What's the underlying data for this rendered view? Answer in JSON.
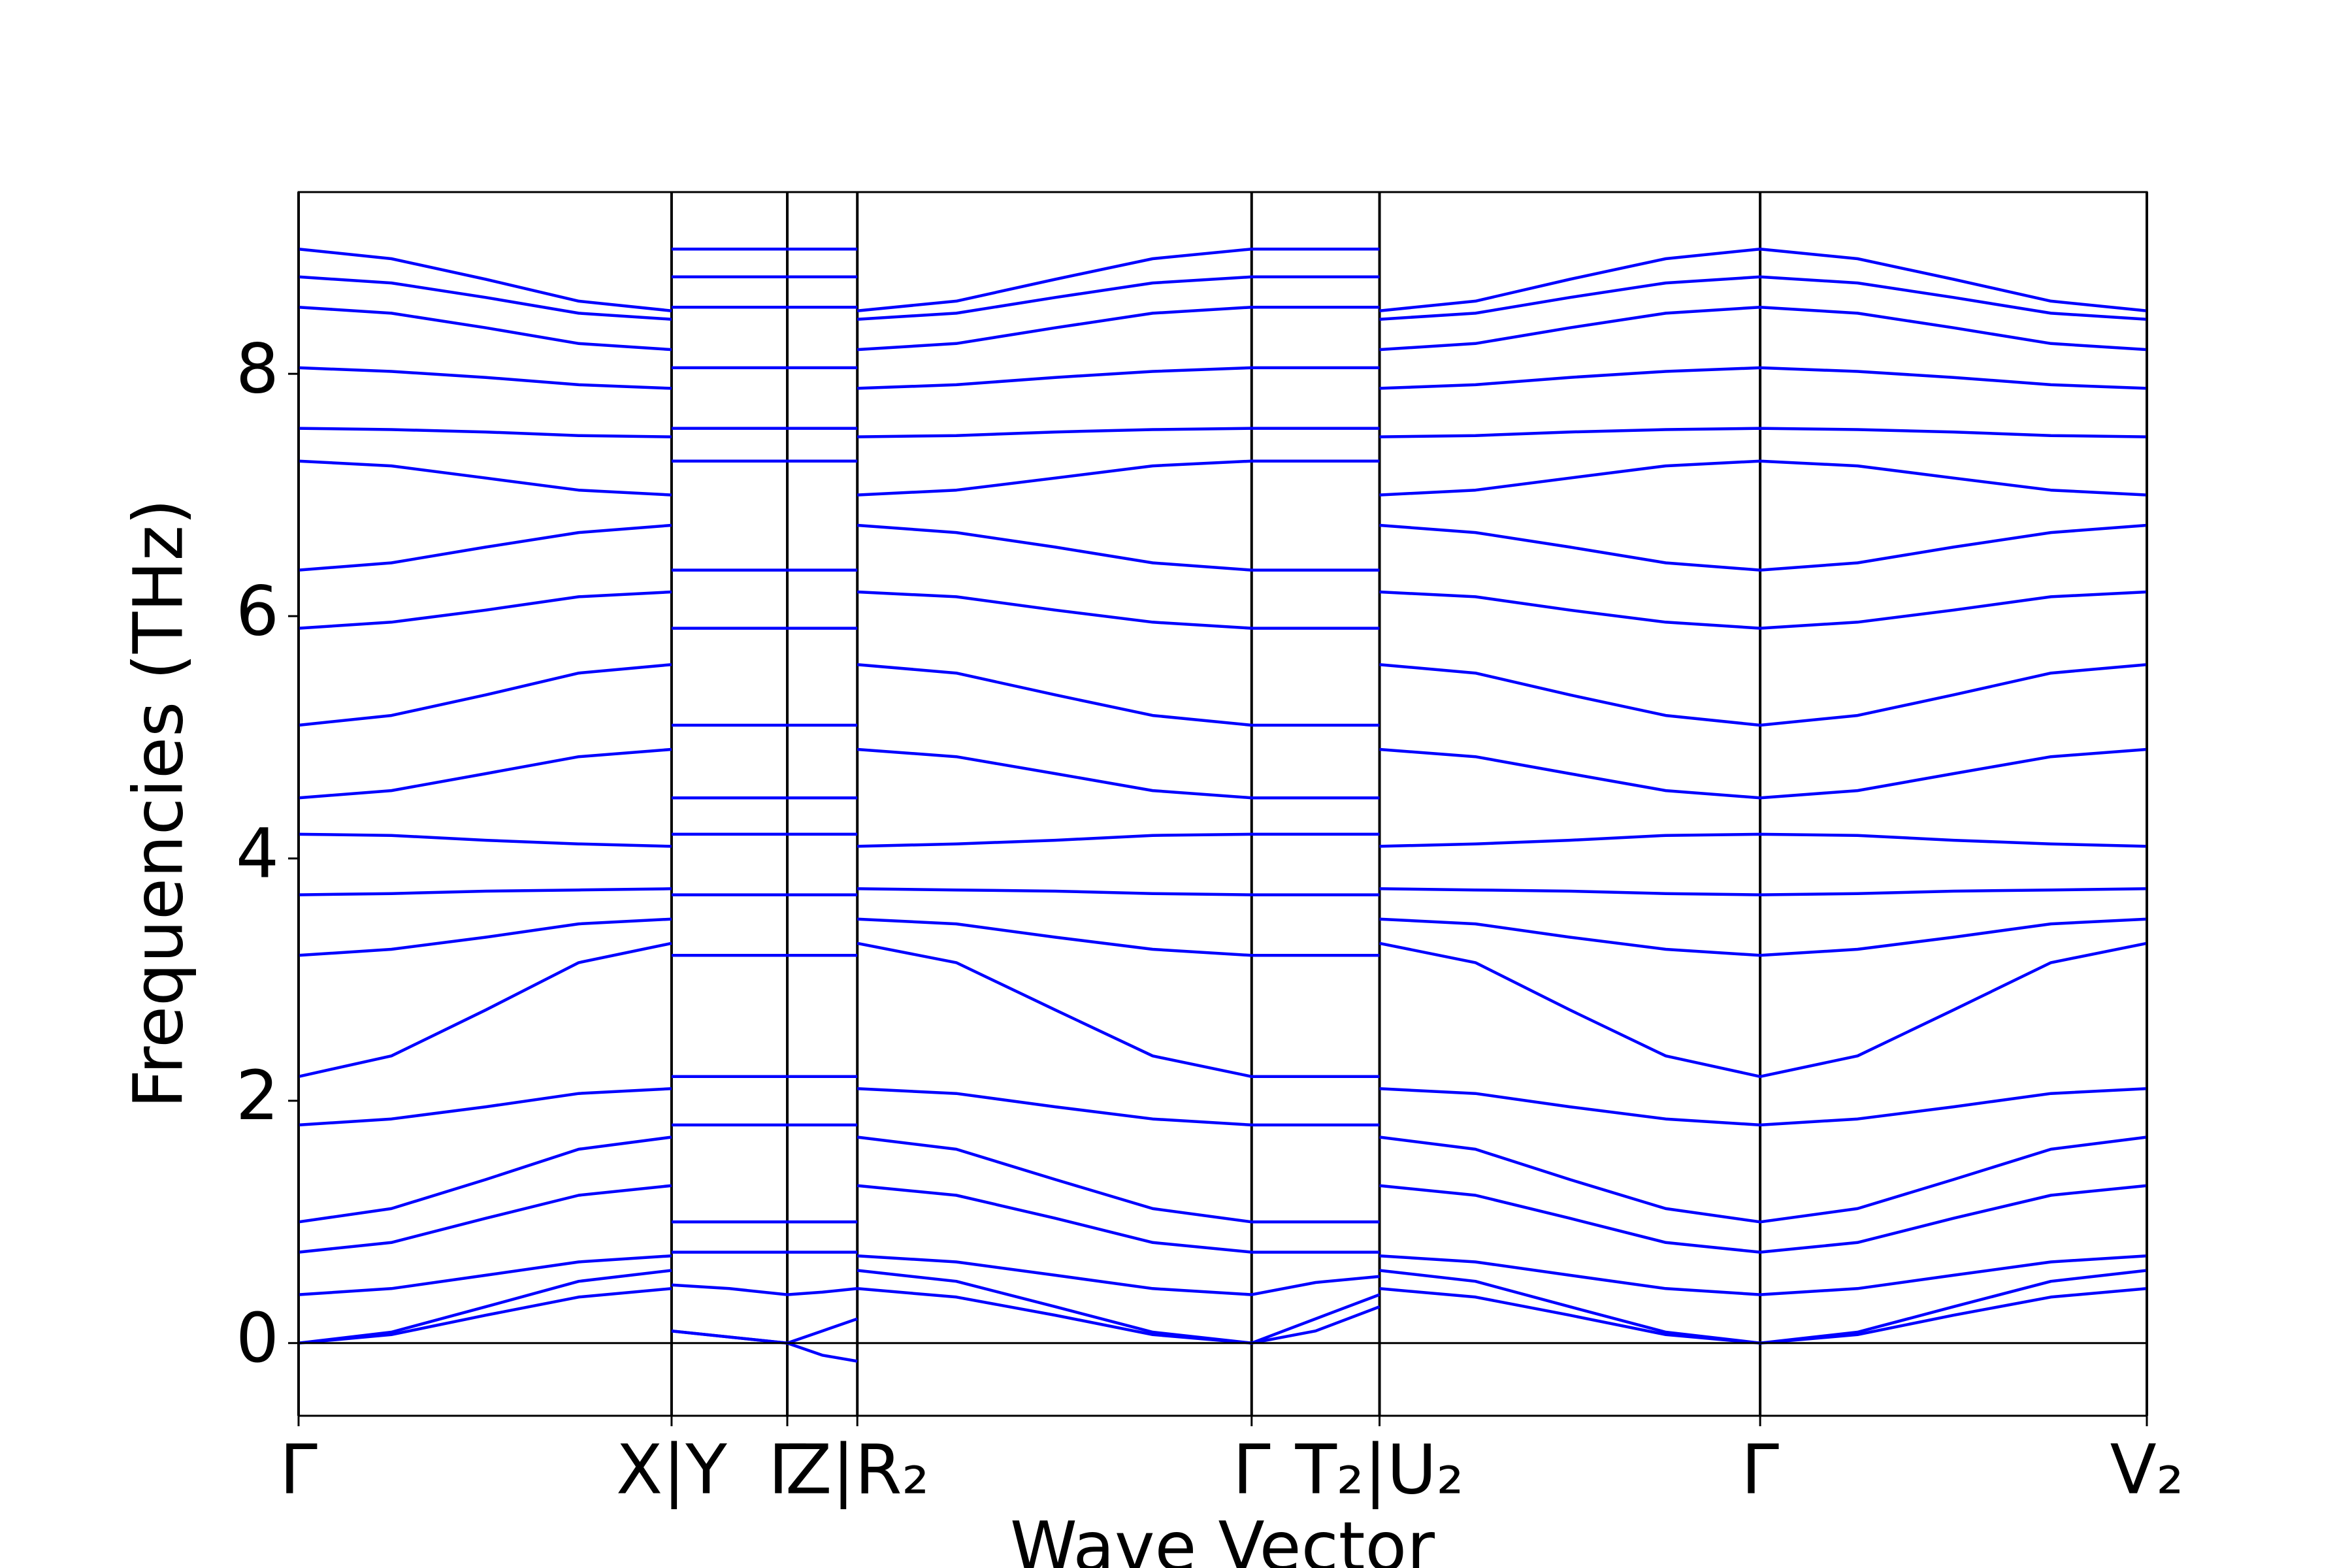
{
  "chart_data": {
    "type": "line",
    "xlabel": "Wave Vector",
    "ylabel": "Frequencies (THz)",
    "color": "#0000ff",
    "zero_line": true,
    "vlines": true,
    "xlim": [
      0,
      1214
    ],
    "ylim": [
      -0.6,
      9.5
    ],
    "yticks": [
      0,
      2,
      4,
      6,
      8
    ],
    "xticks": [
      {
        "value": 0,
        "label": "Γ"
      },
      {
        "value": 245,
        "label": "X|Y"
      },
      {
        "value": 321,
        "label": "Γ"
      },
      {
        "value": 367,
        "label": "Z|R₂"
      },
      {
        "value": 626,
        "label": "Γ"
      },
      {
        "value": 710,
        "label": "T₂|U₂"
      },
      {
        "value": 960,
        "label": "Γ"
      },
      {
        "value": 1214,
        "label": "V₂"
      }
    ],
    "x": [
      0,
      61,
      123,
      184,
      245,
      245,
      245,
      283,
      321,
      344,
      367,
      367,
      367,
      432,
      497,
      561,
      626,
      668,
      710,
      710,
      710,
      773,
      835,
      898,
      960,
      1024,
      1087,
      1151,
      1214
    ],
    "series": [
      {
        "values": [
          9.03,
          8.95,
          8.78,
          8.6,
          8.52,
          null,
          9.03,
          9.03,
          9.03,
          9.03,
          9.03,
          null,
          8.52,
          8.6,
          8.78,
          8.95,
          9.03,
          9.03,
          9.03,
          null,
          8.52,
          8.6,
          8.78,
          8.95,
          9.03,
          8.95,
          8.78,
          8.6,
          8.52
        ]
      },
      {
        "values": [
          8.8,
          8.75,
          8.63,
          8.5,
          8.45,
          null,
          8.8,
          8.8,
          8.8,
          8.8,
          8.8,
          null,
          8.45,
          8.5,
          8.63,
          8.75,
          8.8,
          8.8,
          8.8,
          null,
          8.45,
          8.5,
          8.63,
          8.75,
          8.8,
          8.75,
          8.63,
          8.5,
          8.45
        ]
      },
      {
        "values": [
          8.55,
          8.5,
          8.38,
          8.25,
          8.2,
          null,
          8.55,
          8.55,
          8.55,
          8.55,
          8.55,
          null,
          8.2,
          8.25,
          8.38,
          8.5,
          8.55,
          8.55,
          8.55,
          null,
          8.2,
          8.25,
          8.38,
          8.5,
          8.55,
          8.5,
          8.38,
          8.25,
          8.2
        ]
      },
      {
        "values": [
          8.05,
          8.02,
          7.97,
          7.91,
          7.88,
          null,
          8.05,
          8.05,
          8.05,
          8.05,
          8.05,
          null,
          7.88,
          7.91,
          7.97,
          8.02,
          8.05,
          8.05,
          8.05,
          null,
          7.88,
          7.91,
          7.97,
          8.02,
          8.05,
          8.02,
          7.97,
          7.91,
          7.88
        ]
      },
      {
        "values": [
          7.55,
          7.54,
          7.52,
          7.49,
          7.48,
          null,
          7.55,
          7.55,
          7.55,
          7.55,
          7.55,
          null,
          7.48,
          7.49,
          7.52,
          7.54,
          7.55,
          7.55,
          7.55,
          null,
          7.48,
          7.49,
          7.52,
          7.54,
          7.55,
          7.54,
          7.52,
          7.49,
          7.48
        ]
      },
      {
        "values": [
          7.28,
          7.24,
          7.14,
          7.04,
          7.0,
          null,
          7.28,
          7.28,
          7.28,
          7.28,
          7.28,
          null,
          7.0,
          7.04,
          7.14,
          7.24,
          7.28,
          7.28,
          7.28,
          null,
          7.0,
          7.04,
          7.14,
          7.24,
          7.28,
          7.24,
          7.14,
          7.04,
          7.0
        ]
      },
      {
        "values": [
          6.38,
          6.44,
          6.57,
          6.69,
          6.75,
          null,
          6.38,
          6.38,
          6.38,
          6.38,
          6.38,
          null,
          6.75,
          6.69,
          6.57,
          6.44,
          6.38,
          6.38,
          6.38,
          null,
          6.75,
          6.69,
          6.57,
          6.44,
          6.38,
          6.44,
          6.57,
          6.69,
          6.75
        ]
      },
      {
        "values": [
          5.9,
          5.95,
          6.05,
          6.16,
          6.2,
          null,
          5.9,
          5.9,
          5.9,
          5.9,
          5.9,
          null,
          6.2,
          6.16,
          6.05,
          5.95,
          5.9,
          5.9,
          5.9,
          null,
          6.2,
          6.16,
          6.05,
          5.95,
          5.9,
          5.95,
          6.05,
          6.16,
          6.2
        ]
      },
      {
        "values": [
          5.1,
          5.18,
          5.35,
          5.53,
          5.6,
          null,
          5.1,
          5.1,
          5.1,
          5.1,
          5.1,
          null,
          5.6,
          5.53,
          5.35,
          5.18,
          5.1,
          5.1,
          5.1,
          null,
          5.6,
          5.53,
          5.35,
          5.18,
          5.1,
          5.18,
          5.35,
          5.53,
          5.6
        ]
      },
      {
        "values": [
          4.5,
          4.56,
          4.7,
          4.84,
          4.9,
          null,
          4.5,
          4.5,
          4.5,
          4.5,
          4.5,
          null,
          4.9,
          4.84,
          4.7,
          4.56,
          4.5,
          4.5,
          4.5,
          null,
          4.9,
          4.84,
          4.7,
          4.56,
          4.5,
          4.56,
          4.7,
          4.84,
          4.9
        ]
      },
      {
        "values": [
          4.2,
          4.19,
          4.15,
          4.12,
          4.1,
          null,
          4.2,
          4.2,
          4.2,
          4.2,
          4.2,
          null,
          4.1,
          4.12,
          4.15,
          4.19,
          4.2,
          4.2,
          4.2,
          null,
          4.1,
          4.12,
          4.15,
          4.19,
          4.2,
          4.19,
          4.15,
          4.12,
          4.1
        ]
      },
      {
        "values": [
          3.7,
          3.71,
          3.73,
          3.74,
          3.75,
          null,
          3.7,
          3.7,
          3.7,
          3.7,
          3.7,
          null,
          3.75,
          3.74,
          3.73,
          3.71,
          3.7,
          3.7,
          3.7,
          null,
          3.75,
          3.74,
          3.73,
          3.71,
          3.7,
          3.71,
          3.73,
          3.74,
          3.75
        ]
      },
      {
        "values": [
          3.2,
          3.25,
          3.35,
          3.46,
          3.5,
          null,
          3.2,
          3.2,
          3.2,
          3.2,
          3.2,
          null,
          3.5,
          3.46,
          3.35,
          3.25,
          3.2,
          3.2,
          3.2,
          null,
          3.5,
          3.46,
          3.35,
          3.25,
          3.2,
          3.25,
          3.35,
          3.46,
          3.5
        ]
      },
      {
        "values": [
          2.2,
          2.37,
          2.75,
          3.14,
          3.3,
          null,
          2.2,
          2.2,
          2.2,
          2.2,
          2.2,
          null,
          3.3,
          3.14,
          2.75,
          2.37,
          2.2,
          2.2,
          2.2,
          null,
          3.3,
          3.14,
          2.75,
          2.37,
          2.2,
          2.37,
          2.75,
          3.14,
          3.3
        ]
      },
      {
        "values": [
          1.8,
          1.85,
          1.95,
          2.06,
          2.1,
          null,
          1.8,
          1.8,
          1.8,
          1.8,
          1.8,
          null,
          2.1,
          2.06,
          1.95,
          1.85,
          1.8,
          1.8,
          1.8,
          null,
          2.1,
          2.06,
          1.95,
          1.85,
          1.8,
          1.85,
          1.95,
          2.06,
          2.1
        ]
      },
      {
        "values": [
          1.0,
          1.11,
          1.35,
          1.6,
          1.7,
          null,
          1.0,
          1.0,
          1.0,
          1.0,
          1.0,
          null,
          1.7,
          1.6,
          1.35,
          1.11,
          1.0,
          1.0,
          1.0,
          null,
          1.7,
          1.6,
          1.35,
          1.11,
          1.0,
          1.11,
          1.35,
          1.6,
          1.7
        ]
      },
      {
        "values": [
          0.75,
          0.83,
          1.03,
          1.22,
          1.3,
          null,
          0.75,
          0.75,
          0.75,
          0.75,
          0.75,
          null,
          1.3,
          1.22,
          1.03,
          0.83,
          0.75,
          0.75,
          0.75,
          null,
          1.3,
          1.22,
          1.03,
          0.83,
          0.75,
          0.83,
          1.03,
          1.22,
          1.3
        ]
      },
      {
        "values": [
          0.4,
          0.45,
          0.56,
          0.67,
          0.72,
          null,
          0.48,
          0.45,
          0.4,
          0.42,
          0.45,
          null,
          0.72,
          0.67,
          0.56,
          0.45,
          0.4,
          0.5,
          0.55,
          null,
          0.72,
          0.67,
          0.56,
          0.45,
          0.4,
          0.45,
          0.56,
          0.67,
          0.72
        ]
      },
      {
        "values": [
          0,
          0.09,
          0.3,
          0.51,
          0.6,
          null,
          0.1,
          0.05,
          0,
          0.1,
          0.2,
          null,
          0.6,
          0.51,
          0.3,
          0.09,
          0,
          0.2,
          0.4,
          null,
          0.6,
          0.51,
          0.3,
          0.09,
          0,
          0.09,
          0.3,
          0.51,
          0.6
        ]
      },
      {
        "values": [
          0,
          0.07,
          0.23,
          0.38,
          0.45,
          null,
          0.1,
          0.05,
          0,
          -0.1,
          -0.15,
          null,
          0.45,
          0.38,
          0.23,
          0.07,
          0,
          0.1,
          0.3,
          null,
          0.45,
          0.38,
          0.23,
          0.07,
          0,
          0.07,
          0.23,
          0.38,
          0.45
        ]
      }
    ]
  }
}
